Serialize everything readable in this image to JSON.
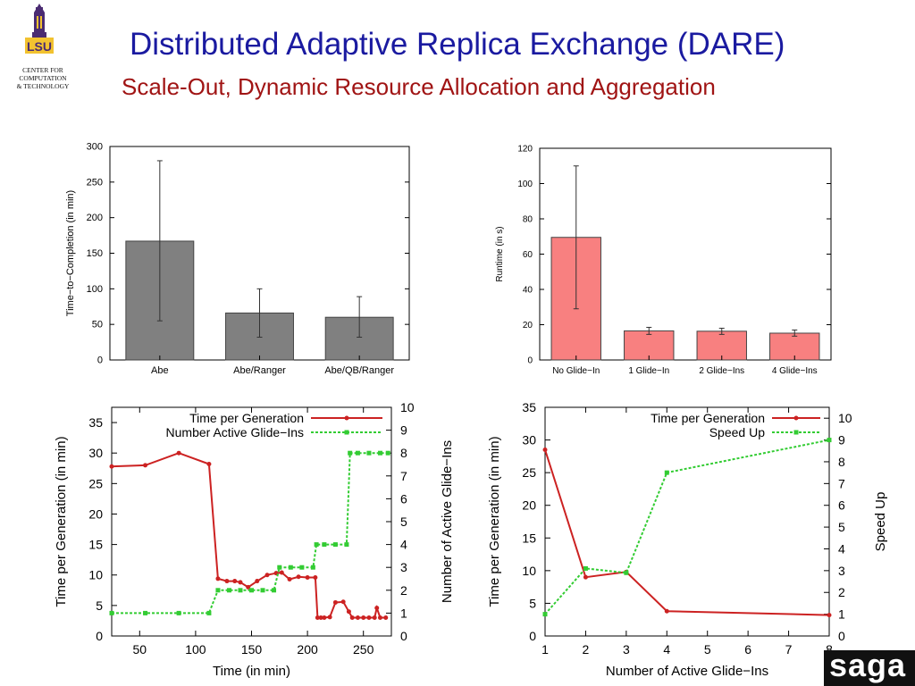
{
  "header": {
    "title": "Distributed Adaptive Replica Exchange (DARE)",
    "subtitle": "Scale-Out, Dynamic Resource Allocation and Aggregation"
  },
  "logo": {
    "name": "LSU",
    "line1": "CENTER FOR COMPUTATION",
    "line2": "& TECHNOLOGY"
  },
  "footer_logo": {
    "text": "saga"
  },
  "chart_data": [
    {
      "type": "bar",
      "categories": [
        "Abe",
        "Abe/Ranger",
        "Abe/QB/Ranger"
      ],
      "values": [
        167,
        66,
        60
      ],
      "error_low": [
        55,
        32,
        32
      ],
      "error_high": [
        280,
        100,
        89
      ],
      "xlabel": "",
      "ylabel": "Time−to−Completion (in min)",
      "ylim": [
        0,
        300
      ],
      "yticks": [
        0,
        50,
        100,
        150,
        200,
        250,
        300
      ],
      "bar_color": "#808080"
    },
    {
      "type": "bar",
      "categories": [
        "No Glide−In",
        "1 Glide−In",
        "2 Glide−Ins",
        "4 Glide−Ins"
      ],
      "values": [
        69.5,
        16.5,
        16.3,
        15.2
      ],
      "error_low": [
        29,
        14.5,
        14.5,
        13.5
      ],
      "error_high": [
        110,
        18.5,
        18,
        17
      ],
      "xlabel": "",
      "ylabel": "Runtime (in s)",
      "ylim": [
        0,
        120
      ],
      "yticks": [
        0,
        20,
        40,
        60,
        80,
        100,
        120
      ],
      "bar_color": "#f88080"
    },
    {
      "type": "line",
      "xlabel": "Time (in min)",
      "ylabel": "Time per Generation (in min)",
      "y2label": "Number of Active Glide−Ins",
      "xlim": [
        25,
        275
      ],
      "ylim": [
        0,
        37.5
      ],
      "y2lim": [
        0,
        10
      ],
      "xticks": [
        50,
        100,
        150,
        200,
        250
      ],
      "yticks": [
        0,
        5,
        10,
        15,
        20,
        25,
        30,
        35
      ],
      "y2ticks": [
        0,
        1,
        2,
        3,
        4,
        5,
        6,
        7,
        8,
        9,
        10
      ],
      "legend": "top-right",
      "series": [
        {
          "name": "Time per Generation",
          "axis": "left",
          "color": "#cc2222",
          "x": [
            25,
            55,
            85,
            112,
            120,
            128,
            135,
            140,
            147,
            155,
            164,
            172,
            177,
            184,
            192,
            200,
            207,
            209,
            212,
            215,
            220,
            225,
            232,
            237,
            240,
            245,
            250,
            255,
            260,
            262,
            265,
            270
          ],
          "y": [
            27.8,
            28.0,
            30.0,
            28.2,
            9.4,
            9.0,
            9.0,
            8.8,
            8.0,
            9.0,
            10.0,
            10.3,
            10.4,
            9.3,
            9.7,
            9.6,
            9.6,
            3.0,
            3.0,
            3.0,
            3.1,
            5.5,
            5.6,
            4.0,
            3.0,
            3.0,
            3.0,
            3.0,
            3.0,
            4.6,
            3.0,
            3.0
          ]
        },
        {
          "name": "Number Active Glide−Ins",
          "axis": "right",
          "color": "#33cc33",
          "x": [
            25,
            55,
            85,
            112,
            120,
            130,
            140,
            150,
            160,
            170,
            175,
            185,
            195,
            205,
            208,
            215,
            225,
            235,
            238,
            245,
            255,
            265,
            272
          ],
          "y": [
            1,
            1,
            1,
            1,
            2,
            2,
            2,
            2,
            2,
            2,
            3,
            3,
            3,
            3,
            4,
            4,
            4,
            4,
            8,
            8,
            8,
            8,
            8
          ]
        }
      ]
    },
    {
      "type": "line",
      "xlabel": "Number of Active Glide−Ins",
      "ylabel": "Time per Generation (in min)",
      "y2label": "Speed Up",
      "xlim": [
        1,
        8
      ],
      "ylim": [
        0,
        35
      ],
      "y2lim": [
        0,
        10.5
      ],
      "xticks": [
        1,
        2,
        3,
        4,
        5,
        6,
        7,
        8
      ],
      "yticks": [
        0,
        5,
        10,
        15,
        20,
        25,
        30,
        35
      ],
      "y2ticks": [
        0,
        1,
        2,
        3,
        4,
        5,
        6,
        7,
        8,
        9,
        10
      ],
      "legend": "top-right",
      "series": [
        {
          "name": "Time per Generation",
          "axis": "left",
          "color": "#cc2222",
          "x": [
            1,
            2,
            3,
            4,
            8
          ],
          "y": [
            28.5,
            9.0,
            9.8,
            3.8,
            3.2
          ]
        },
        {
          "name": "Speed Up",
          "axis": "right",
          "color": "#33cc33",
          "x": [
            1,
            2,
            3,
            4,
            8
          ],
          "y": [
            1.0,
            3.1,
            2.9,
            7.5,
            9.0
          ]
        }
      ]
    }
  ]
}
